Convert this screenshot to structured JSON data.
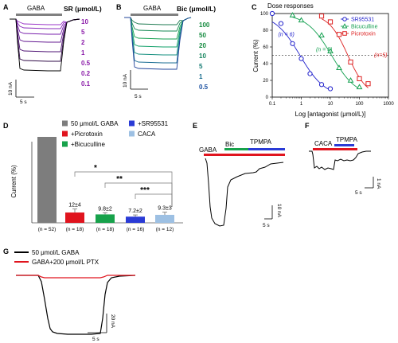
{
  "panels": {
    "A": {
      "letter": "A",
      "bar_label": "GABA",
      "legend_title": "SR (μmol/L)",
      "concentrations": [
        "10",
        "5",
        "2",
        "1",
        "0.5",
        "0.2",
        "0.1"
      ],
      "scale_y": "10 nA",
      "scale_x": "5 s",
      "trace_color": "#8a1aa8"
    },
    "B": {
      "letter": "B",
      "bar_label": "GABA",
      "legend_title": "Bic (μmol/L)",
      "concentrations": [
        "100",
        "50",
        "20",
        "10",
        "5",
        "1",
        "0.5"
      ],
      "scale_y": "10 nA",
      "scale_x": "5 s"
    },
    "C": {
      "letter": "C"
    },
    "D": {
      "letter": "D"
    },
    "E": {
      "letter": "E",
      "gaba": "GABA",
      "bic": "Bic",
      "tpmpa": "TPMPA",
      "scale_y": "10 nA",
      "scale_x": "5 s"
    },
    "F": {
      "letter": "F",
      "caca": "CACA",
      "tpmpa": "TPMPA",
      "scale_y": "1 nA",
      "scale_x": "5 s"
    },
    "G": {
      "letter": "G",
      "legend": [
        "50 μmol/L GABA",
        "GABA+200 μmol/L PTX"
      ],
      "scale_y": "20 nA",
      "scale_x": "5 s"
    }
  },
  "chart_data": [
    {
      "panel": "C",
      "type": "scatter",
      "title": "Dose responses",
      "xlabel": "Log [antagonist (μmol/L)]",
      "ylabel": "Current (%)",
      "xscale": "log",
      "xlim": [
        0.1,
        1000
      ],
      "ylim": [
        0,
        100
      ],
      "xticks": [
        "0.1",
        "1",
        "10",
        "100",
        "1000"
      ],
      "yticks": [
        "0",
        "20",
        "40",
        "60",
        "80",
        "100"
      ],
      "reference_line_y": 50,
      "legend_position": "top-right",
      "series": [
        {
          "name": "SR95531",
          "color": "#2222cc",
          "marker": "circle",
          "x": [
            0.1,
            0.2,
            0.5,
            1,
            2,
            5,
            10
          ],
          "y": [
            100,
            88,
            64,
            46,
            28,
            15,
            10
          ],
          "n_label": "(n = 6)"
        },
        {
          "name": "Bicuculline",
          "color": "#14a050",
          "marker": "triangle",
          "x": [
            0.5,
            1,
            5,
            10,
            20,
            50,
            100
          ],
          "y": [
            98,
            92,
            74,
            55,
            35,
            20,
            12
          ],
          "n_label": "(n = 5)"
        },
        {
          "name": "Picrotoxin",
          "color": "#dd2222",
          "marker": "square",
          "x": [
            5,
            10,
            20,
            50,
            100,
            200
          ],
          "y": [
            97,
            90,
            75,
            42,
            22,
            16
          ],
          "n_label": "(n=5)"
        }
      ]
    },
    {
      "panel": "D",
      "type": "bar",
      "ylabel": "Current (%)",
      "ylim": [
        0,
        100
      ],
      "legend": [
        {
          "label": "50 μmol/L GABA",
          "color": "#7d7d7d"
        },
        {
          "label": "+SR95531",
          "color": "#2a3bd6"
        },
        {
          "label": "+Picrotoxin",
          "color": "#e0141e"
        },
        {
          "label": "CACA",
          "color": "#9dc0e3"
        },
        {
          "label": "+Bicuculline",
          "color": "#17a24b"
        }
      ],
      "categories": [
        "50 μmol/L GABA",
        "+Picrotoxin",
        "+Bicuculline",
        "+SR95531",
        "CACA"
      ],
      "values": [
        100,
        12,
        9.8,
        7.2,
        9.3
      ],
      "errors": [
        0,
        4,
        2,
        2,
        3
      ],
      "colors": [
        "#7d7d7d",
        "#e0141e",
        "#17a24b",
        "#2a3bd6",
        "#9dc0e3"
      ],
      "value_labels": [
        "",
        "12±4",
        "9.8±2",
        "7.2±2",
        "9.3±3"
      ],
      "n_labels": [
        "(n = 52)",
        "(n = 18)",
        "(n = 18)",
        "(n = 16)",
        "(n = 12)"
      ],
      "significance": [
        "*",
        "**",
        "***"
      ]
    }
  ]
}
